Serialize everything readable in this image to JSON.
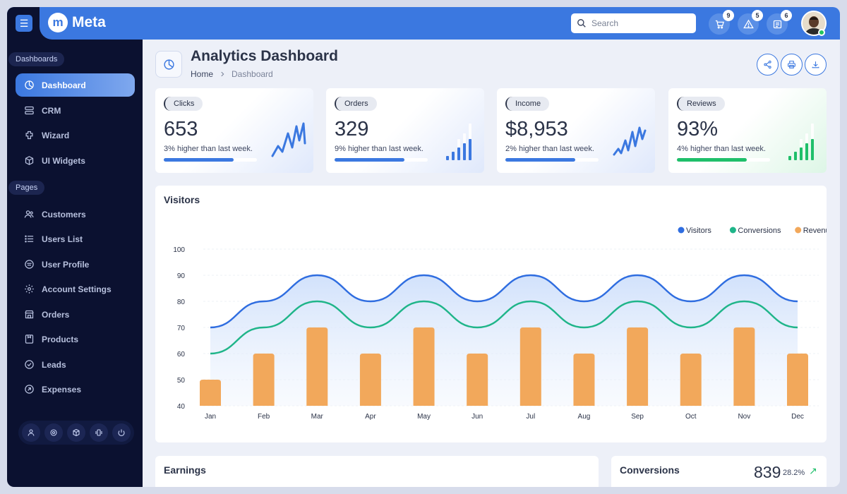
{
  "app": {
    "logo_letter": "m",
    "name": "Meta"
  },
  "header": {
    "search_placeholder": "Search",
    "badges": {
      "cart": "9",
      "alerts": "5",
      "news": "6"
    }
  },
  "sidebar": {
    "section_dashboards": "Dashboards",
    "section_pages": "Pages",
    "items": [
      {
        "label": "Dashboard",
        "icon": "pie-chart-icon",
        "active": true
      },
      {
        "label": "CRM",
        "icon": "layers-icon"
      },
      {
        "label": "Wizard",
        "icon": "puzzle-icon"
      },
      {
        "label": "UI Widgets",
        "icon": "box-icon"
      },
      {
        "label": "Customers",
        "icon": "users-icon"
      },
      {
        "label": "Users List",
        "icon": "list-icon"
      },
      {
        "label": "User Profile",
        "icon": "profile-icon"
      },
      {
        "label": "Account Settings",
        "icon": "gear-icon"
      },
      {
        "label": "Orders",
        "icon": "store-icon"
      },
      {
        "label": "Products",
        "icon": "product-icon"
      },
      {
        "label": "Leads",
        "icon": "check-circle-icon"
      },
      {
        "label": "Expenses",
        "icon": "arrow-circle-icon"
      }
    ]
  },
  "page": {
    "title": "Analytics Dashboard",
    "breadcrumb": {
      "home": "Home",
      "current": "Dashboard"
    }
  },
  "stats": [
    {
      "label": "Clicks",
      "value": "653",
      "sub": "3% higher than last week.",
      "progress": 0.75,
      "color": "#3b78e0"
    },
    {
      "label": "Orders",
      "value": "329",
      "sub": "9% higher than last week.",
      "progress": 0.75,
      "color": "#3b78e0"
    },
    {
      "label": "Income",
      "value": "$8,953",
      "sub": "2% higher than last week.",
      "progress": 0.75,
      "color": "#3b78e0"
    },
    {
      "label": "Reviews",
      "value": "93%",
      "sub": "4% higher than last week.",
      "progress": 0.75,
      "color": "#1fbf6a"
    }
  ],
  "visitors": {
    "title": "Visitors",
    "chart_data": {
      "type": "line",
      "categories": [
        "Jan",
        "Feb",
        "Mar",
        "Apr",
        "May",
        "Jun",
        "Jul",
        "Aug",
        "Sep",
        "Oct",
        "Nov",
        "Dec"
      ],
      "ylim": [
        40,
        100
      ],
      "yticks": [
        40,
        50,
        60,
        70,
        80,
        90,
        100
      ],
      "legend_position": "top-right",
      "grid": true,
      "series": [
        {
          "name": "Visitors",
          "type": "area",
          "color": "#2f6de0",
          "values": [
            70,
            80,
            90,
            80,
            90,
            80,
            90,
            80,
            90,
            80,
            90,
            80
          ]
        },
        {
          "name": "Conversions",
          "type": "line",
          "color": "#1fb589",
          "values": [
            60,
            70,
            80,
            70,
            80,
            70,
            80,
            70,
            80,
            70,
            80,
            70
          ]
        },
        {
          "name": "Revenue",
          "type": "bar",
          "color": "#f2a85b",
          "values": [
            50,
            60,
            70,
            60,
            70,
            60,
            70,
            60,
            70,
            60,
            70,
            60
          ]
        }
      ]
    }
  },
  "earnings": {
    "title": "Earnings"
  },
  "conversions": {
    "title": "Conversions",
    "value": "839",
    "pct": "28.2%",
    "arrow": "↗"
  }
}
